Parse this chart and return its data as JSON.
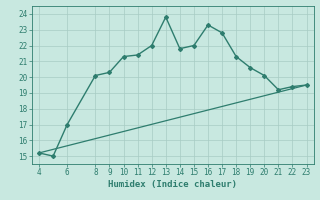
{
  "curve_x": [
    4,
    5,
    6,
    8,
    9,
    10,
    11,
    12,
    13,
    14,
    15,
    16,
    17,
    18,
    19,
    20,
    21,
    22,
    23
  ],
  "curve_y": [
    15.2,
    15.0,
    17.0,
    20.1,
    20.3,
    21.3,
    21.4,
    22.0,
    23.8,
    21.8,
    22.0,
    23.3,
    22.8,
    21.3,
    20.6,
    20.1,
    19.2,
    19.4,
    19.5
  ],
  "trend_x": [
    4,
    23
  ],
  "trend_y": [
    15.2,
    19.5
  ],
  "line_color": "#2e7d6e",
  "bg_color": "#c8e8e0",
  "grid_color": "#a8ccc4",
  "xlabel": "Humidex (Indice chaleur)",
  "ylim": [
    14.5,
    24.5
  ],
  "xlim": [
    3.5,
    23.5
  ],
  "yticks": [
    15,
    16,
    17,
    18,
    19,
    20,
    21,
    22,
    23,
    24
  ],
  "xticks": [
    4,
    6,
    8,
    9,
    10,
    11,
    12,
    13,
    14,
    15,
    16,
    17,
    18,
    19,
    20,
    21,
    22,
    23
  ],
  "tick_fontsize": 5.5,
  "xlabel_fontsize": 6.5,
  "marker": "D",
  "markersize": 2.0,
  "linewidth": 1.0,
  "trend_linewidth": 0.9
}
